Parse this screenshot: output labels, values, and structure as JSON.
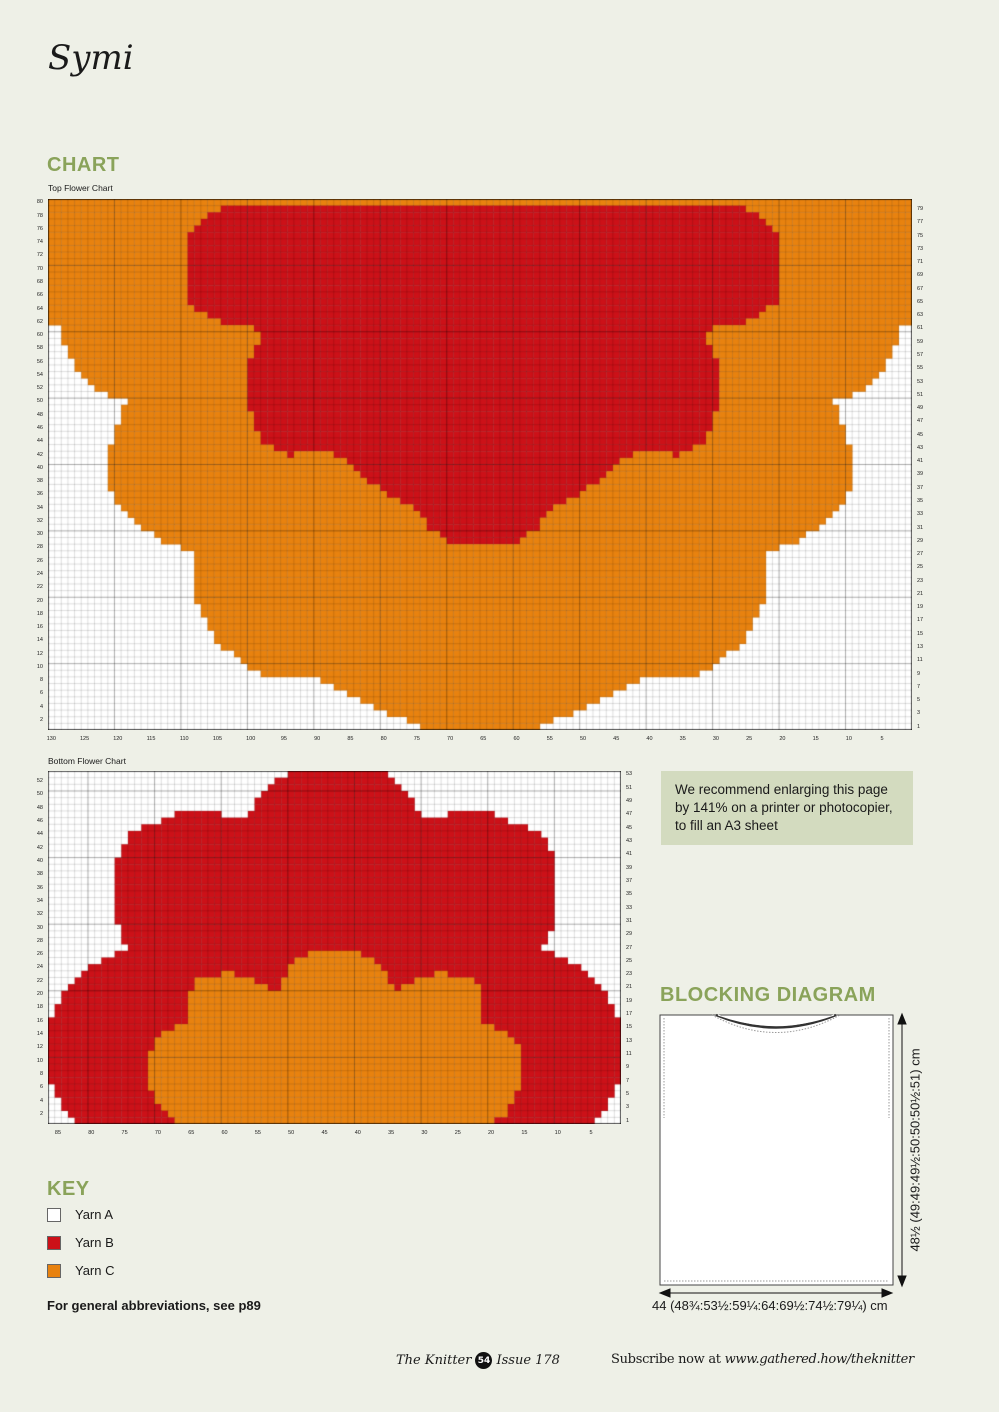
{
  "title": "Symi",
  "chart_heading": "CHART",
  "top_chart": {
    "label": "Top Flower Chart",
    "col_ticks": [
      "130",
      "125",
      "120",
      "115",
      "110",
      "105",
      "100",
      "95",
      "90",
      "85",
      "80",
      "75",
      "70",
      "65",
      "60",
      "55",
      "50",
      "45",
      "40",
      "35",
      "30",
      "25",
      "20",
      "15",
      "10",
      "5"
    ],
    "left_rows": [
      "80",
      "78",
      "76",
      "74",
      "72",
      "70",
      "68",
      "66",
      "64",
      "62",
      "60",
      "58",
      "56",
      "54",
      "52",
      "50",
      "48",
      "46",
      "44",
      "42",
      "40",
      "38",
      "36",
      "34",
      "32",
      "30",
      "28",
      "26",
      "24",
      "22",
      "20",
      "18",
      "16",
      "14",
      "12",
      "10",
      "8",
      "6",
      "4",
      "2"
    ],
    "right_rows": [
      "79",
      "77",
      "75",
      "73",
      "71",
      "69",
      "67",
      "65",
      "63",
      "61",
      "59",
      "57",
      "55",
      "53",
      "51",
      "49",
      "47",
      "45",
      "43",
      "41",
      "39",
      "37",
      "35",
      "33",
      "31",
      "29",
      "27",
      "25",
      "23",
      "21",
      "19",
      "17",
      "15",
      "13",
      "11",
      "9",
      "7",
      "5",
      "3",
      "1"
    ]
  },
  "bottom_chart": {
    "label": "Bottom  Flower Chart",
    "col_ticks": [
      "85",
      "80",
      "75",
      "70",
      "65",
      "60",
      "55",
      "50",
      "45",
      "40",
      "35",
      "30",
      "25",
      "20",
      "15",
      "10",
      "5"
    ],
    "left_rows": [
      "52",
      "50",
      "48",
      "46",
      "44",
      "42",
      "40",
      "38",
      "36",
      "34",
      "32",
      "30",
      "28",
      "26",
      "24",
      "22",
      "20",
      "18",
      "16",
      "14",
      "12",
      "10",
      "8",
      "6",
      "4",
      "2"
    ],
    "right_rows": [
      "53",
      "51",
      "49",
      "47",
      "45",
      "43",
      "41",
      "39",
      "37",
      "35",
      "33",
      "31",
      "29",
      "27",
      "25",
      "23",
      "21",
      "19",
      "17",
      "15",
      "13",
      "11",
      "9",
      "7",
      "5",
      "3",
      "1"
    ]
  },
  "note": "We recommend enlarging this page by 141% on a printer or photocopier, to fill an A3 sheet",
  "key": {
    "heading": "KEY",
    "items": [
      {
        "label": "Yarn A",
        "color": "#ffffff"
      },
      {
        "label": "Yarn B",
        "color": "#cc1118"
      },
      {
        "label": "Yarn C",
        "color": "#e8820f"
      }
    ]
  },
  "abbrev": "For general abbreviations, see p89",
  "blocking": {
    "heading": "BLOCKING DIAGRAM",
    "width": "44 (48¾:53½:59¼:64:69½:74½:79¼) cm",
    "length": "48½ (49:49:49½:50:50:50½:51) cm"
  },
  "footer": {
    "magazine": "The Knitter",
    "page": "54",
    "issue": "Issue 178",
    "subscribe": "Subscribe now at",
    "url": "www.gathered.how/theknitter"
  },
  "colors": {
    "accent": "#8aa35a",
    "note_bg": "#d3dbbf"
  }
}
